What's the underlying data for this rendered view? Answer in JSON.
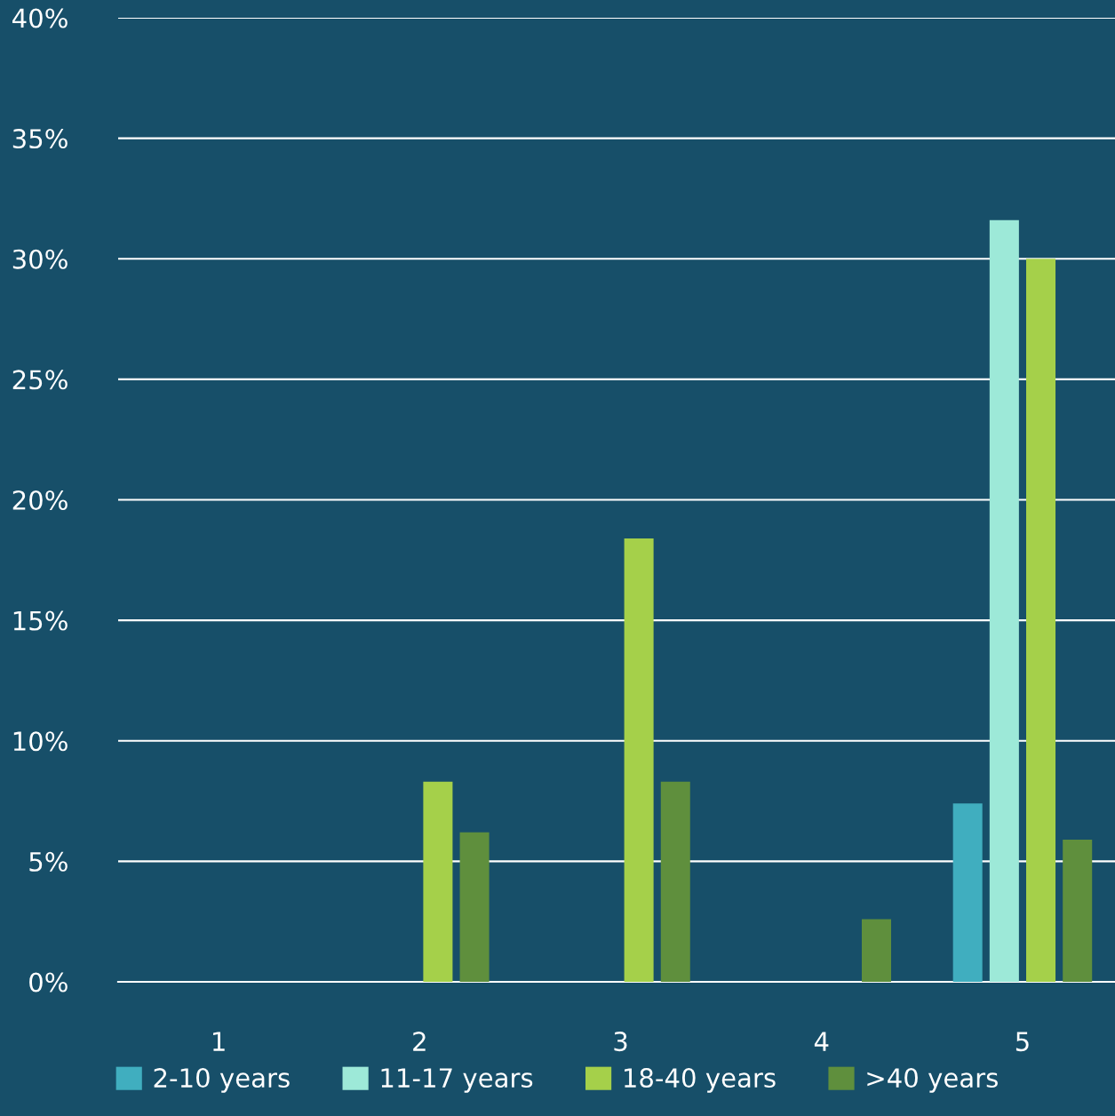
{
  "chart_data": {
    "type": "bar",
    "categories": [
      "1",
      "2",
      "3",
      "4",
      "5"
    ],
    "series": [
      {
        "name": "2-10 years",
        "color": "#40aebf",
        "values": [
          null,
          null,
          null,
          null,
          7.4
        ]
      },
      {
        "name": "11-17 years",
        "color": "#9de9d8",
        "values": [
          null,
          null,
          null,
          null,
          31.6
        ]
      },
      {
        "name": "18-40 years",
        "color": "#a5d04a",
        "values": [
          null,
          8.3,
          18.4,
          null,
          30
        ]
      },
      {
        "name": ">40 years",
        "color": "#5f8f3d",
        "values": [
          null,
          6.2,
          8.3,
          2.6,
          5.9
        ]
      }
    ],
    "ylim": [
      0,
      40
    ],
    "yticks": [
      {
        "value": 0,
        "label": "0%"
      },
      {
        "value": 5,
        "label": "5%"
      },
      {
        "value": 10,
        "label": "10%"
      },
      {
        "value": 15,
        "label": "15%"
      },
      {
        "value": 20,
        "label": "20%"
      },
      {
        "value": 25,
        "label": "25%"
      },
      {
        "value": 30,
        "label": "30%"
      },
      {
        "value": 35,
        "label": "35%"
      },
      {
        "value": 40,
        "label": "40%"
      }
    ],
    "grid": "y",
    "legend": "bottom"
  }
}
